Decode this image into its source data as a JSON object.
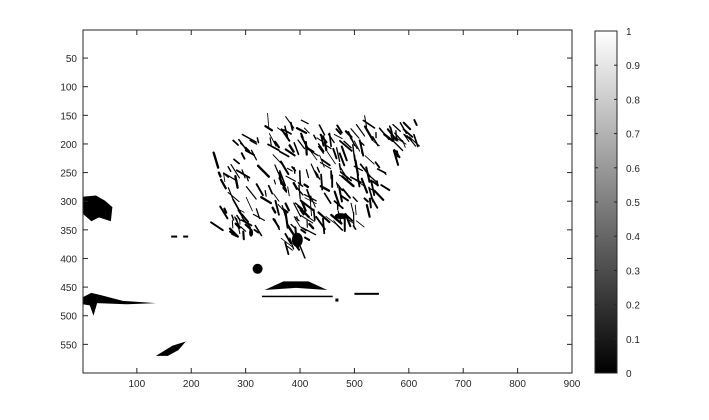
{
  "chart_data": {
    "type": "heatmap",
    "title": "",
    "xlabel": "",
    "ylabel": "",
    "xlim": [
      1,
      900
    ],
    "ylim": [
      600,
      1
    ],
    "y_reversed": true,
    "x_ticks": [
      100,
      200,
      300,
      400,
      500,
      600,
      700,
      800,
      900
    ],
    "y_ticks": [
      50,
      100,
      150,
      200,
      250,
      300,
      350,
      400,
      450,
      500,
      550
    ],
    "colormap": "gray",
    "clim": [
      0,
      1
    ],
    "colorbar_ticks": [
      0,
      0.1,
      0.2,
      0.3,
      0.4,
      0.5,
      0.6,
      0.7,
      0.8,
      0.9,
      1
    ],
    "background_value": 1,
    "foreground_value": 0,
    "grid": false,
    "black_regions": [
      {
        "name": "left-blob",
        "x": [
          0,
          55
        ],
        "y": [
          290,
          335
        ]
      },
      {
        "name": "left-lower-streak",
        "x": [
          0,
          135
        ],
        "y": [
          460,
          500
        ]
      },
      {
        "name": "bottom-shape",
        "x": [
          135,
          190
        ],
        "y": [
          545,
          570
        ]
      },
      {
        "name": "small-dash",
        "x": [
          130,
          180
        ],
        "y": [
          360,
          365
        ]
      },
      {
        "name": "eye",
        "x": [
          385,
          405
        ],
        "y": [
          355,
          380
        ]
      },
      {
        "name": "nose-line",
        "x": [
          335,
          450
        ],
        "y": [
          440,
          455
        ]
      },
      {
        "name": "chin-marks",
        "x": [
          320,
          540
        ],
        "y": [
          455,
          475
        ]
      },
      {
        "name": "spines",
        "x": [
          245,
          700
        ],
        "y": [
          160,
          400
        ]
      }
    ]
  },
  "colors": {
    "axis": "#262626",
    "background": "#ffffff",
    "ink": "#000000"
  }
}
